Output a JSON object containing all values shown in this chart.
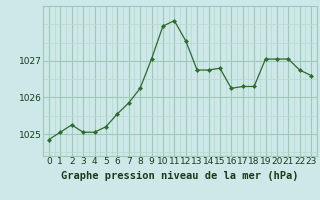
{
  "x": [
    0,
    1,
    2,
    3,
    4,
    5,
    6,
    7,
    8,
    9,
    10,
    11,
    12,
    13,
    14,
    15,
    16,
    17,
    18,
    19,
    20,
    21,
    22,
    23
  ],
  "y": [
    1024.85,
    1025.05,
    1025.25,
    1025.05,
    1025.05,
    1025.2,
    1025.55,
    1025.85,
    1026.25,
    1027.05,
    1027.95,
    1028.1,
    1027.55,
    1026.75,
    1026.75,
    1026.8,
    1026.25,
    1026.3,
    1026.3,
    1027.05,
    1027.05,
    1027.05,
    1026.75,
    1026.6
  ],
  "line_color": "#2d6a2d",
  "marker_color": "#2d6a2d",
  "bg_color": "#cce8e8",
  "grid_major_color": "#a0c8b8",
  "grid_minor_color": "#b8d8cc",
  "xlabel": "Graphe pression niveau de la mer (hPa)",
  "xlabel_color": "#1a3a1a",
  "yticks": [
    1025,
    1026,
    1027
  ],
  "xticks": [
    0,
    1,
    2,
    3,
    4,
    5,
    6,
    7,
    8,
    9,
    10,
    11,
    12,
    13,
    14,
    15,
    16,
    17,
    18,
    19,
    20,
    21,
    22,
    23
  ],
  "ylim": [
    1024.4,
    1028.5
  ],
  "xlim": [
    -0.5,
    23.5
  ],
  "tick_label_color": "#1a3a1a",
  "font_size_xlabel": 7.5,
  "font_size_ticks": 6.5
}
